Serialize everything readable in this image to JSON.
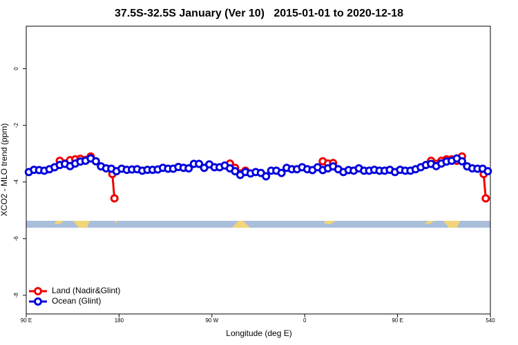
{
  "chart_data": {
    "type": "line",
    "title": "37.5S-32.5S January (Ver 10)   2015-01-01 to 2020-12-18",
    "x_label": "Longitude (deg E)",
    "y_label": "XCO2 - MLO trend (ppm)",
    "xlim": [
      90,
      540
    ],
    "ylim": [
      -8.66,
      1.5
    ],
    "xticks": [
      {
        "value": 90,
        "label": "90 E"
      },
      180,
      {
        "value": 270,
        "label": "90 W"
      },
      {
        "value": 360,
        "label": "0"
      },
      {
        "value": 450,
        "label": "90 E"
      },
      540
    ],
    "yticks": [
      0,
      -2,
      -4,
      -6,
      -8
    ],
    "legend": "bottom-left",
    "series": [
      {
        "name": "Land (Nadir&Glint)",
        "color": "#ee0000",
        "x": [
          122.5,
          132.5,
          137.5,
          142.5,
          147.5,
          152.5,
          160,
          173.5,
          175.5,
          230,
          287.5,
          292.5,
          297.5,
          302.5,
          340,
          377.5,
          382.5,
          387.5,
          430,
          482.5,
          492.5,
          497.5,
          502.5,
          507.5,
          512.5,
          520,
          533.5,
          535.5
        ],
        "values": [
          -3.25,
          -3.23,
          -3.2,
          -3.18,
          -3.22,
          -3.1,
          null,
          -3.72,
          -4.58,
          null,
          -3.35,
          -3.5,
          -3.7,
          -3.6,
          null,
          -3.27,
          -3.35,
          -3.33,
          null,
          -3.25,
          -3.25,
          -3.2,
          -3.2,
          -3.25,
          -3.1,
          null,
          -3.72,
          -4.58
        ]
      },
      {
        "name": "Ocean (Glint)",
        "color": "#0000dd",
        "x": [
          92.5,
          97.5,
          102.5,
          107.5,
          112.5,
          117.5,
          122.5,
          127.5,
          132.5,
          137.5,
          142.5,
          147.5,
          152.5,
          157.5,
          162.5,
          167.5,
          172.5,
          177.5,
          182.5,
          187.5,
          192.5,
          197.5,
          202.5,
          207.5,
          212.5,
          217.5,
          222.5,
          227.5,
          232.5,
          237.5,
          242.5,
          247.5,
          252.5,
          257.5,
          262.5,
          267.5,
          272.5,
          277.5,
          282.5,
          287.5,
          292.5,
          297.5,
          302.5,
          307.5,
          312.5,
          317.5,
          322.5,
          327.5,
          332.5,
          337.5,
          342.5,
          347.5,
          352.5,
          357.5,
          362.5,
          367.5,
          372.5,
          377.5,
          382.5,
          387.5,
          392.5,
          397.5,
          402.5,
          407.5,
          412.5,
          417.5,
          422.5,
          427.5,
          432.5,
          437.5,
          442.5,
          447.5,
          452.5,
          457.5,
          462.5,
          467.5,
          472.5,
          477.5,
          482.5,
          487.5,
          492.5,
          497.5,
          502.5,
          507.5,
          512.5,
          517.5,
          522.5,
          527.5,
          532.5,
          537.5
        ],
        "values": [
          -3.65,
          -3.57,
          -3.58,
          -3.6,
          -3.55,
          -3.48,
          -3.4,
          -3.36,
          -3.44,
          -3.35,
          -3.28,
          -3.25,
          -3.17,
          -3.27,
          -3.45,
          -3.52,
          -3.53,
          -3.62,
          -3.53,
          -3.57,
          -3.56,
          -3.55,
          -3.6,
          -3.57,
          -3.57,
          -3.56,
          -3.5,
          -3.53,
          -3.53,
          -3.47,
          -3.5,
          -3.52,
          -3.36,
          -3.36,
          -3.5,
          -3.38,
          -3.48,
          -3.48,
          -3.42,
          -3.52,
          -3.62,
          -3.75,
          -3.65,
          -3.7,
          -3.65,
          -3.68,
          -3.8,
          -3.6,
          -3.6,
          -3.68,
          -3.5,
          -3.55,
          -3.55,
          -3.48,
          -3.55,
          -3.58,
          -3.48,
          -3.58,
          -3.52,
          -3.45,
          -3.55,
          -3.65,
          -3.58,
          -3.6,
          -3.52,
          -3.6,
          -3.6,
          -3.57,
          -3.6,
          -3.6,
          -3.57,
          -3.65,
          -3.57,
          -3.6,
          -3.6,
          -3.55,
          -3.48,
          -3.4,
          -3.36,
          -3.44,
          -3.35,
          -3.28,
          -3.25,
          -3.17,
          -3.27,
          -3.45,
          -3.52,
          -3.53,
          -3.53,
          -3.62
        ]
      }
    ]
  }
}
